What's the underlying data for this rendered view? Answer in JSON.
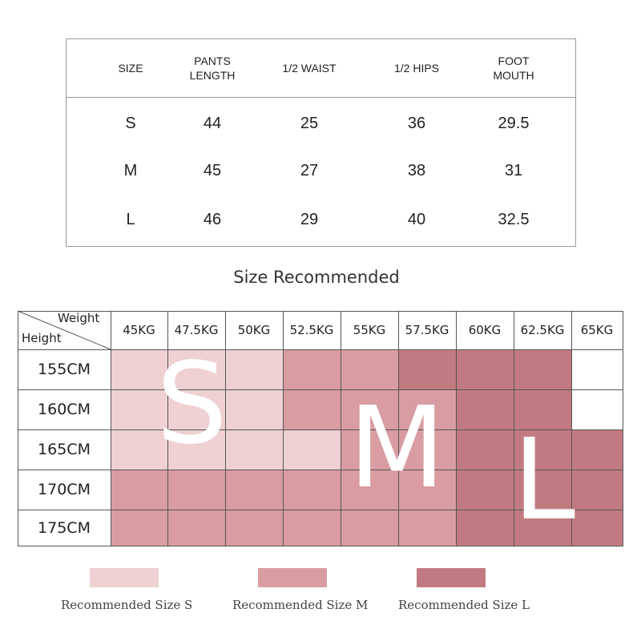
{
  "size_table": {
    "headers": [
      "SIZE",
      "PANTS\nLENGTH",
      "1/2 WAIST",
      "1/2 HIPS",
      "FOOT\nMOUTH"
    ],
    "rows": [
      [
        "S",
        "44",
        "25",
        "36",
        "29.5"
      ],
      [
        "M",
        "45",
        "27",
        "38",
        "31"
      ],
      [
        "L",
        "46",
        "29",
        "40",
        "32.5"
      ]
    ]
  },
  "recommend": {
    "title": "Size Recommended",
    "corner_weight": "Weight",
    "corner_height": "Height",
    "weights": [
      "45KG",
      "47.5KG",
      "50KG",
      "52.5KG",
      "55KG",
      "57.5KG",
      "60KG",
      "62.5KG",
      "65KG"
    ],
    "heights": [
      "155CM",
      "160CM",
      "165CM",
      "170CM",
      "175CM"
    ],
    "grid": [
      [
        "S",
        "S",
        "S",
        "M",
        "M",
        "L",
        "L",
        "L",
        ""
      ],
      [
        "S",
        "S",
        "S",
        "M",
        "M",
        "M",
        "L",
        "L",
        ""
      ],
      [
        "S",
        "S",
        "S",
        "S",
        "M",
        "M",
        "L",
        "L",
        "L"
      ],
      [
        "M",
        "M",
        "M",
        "M",
        "M",
        "M",
        "L",
        "L",
        "L"
      ],
      [
        "M",
        "M",
        "M",
        "M",
        "M",
        "M",
        "L",
        "L",
        "L"
      ]
    ],
    "big_letters": {
      "s": "S",
      "m": "M",
      "l": "L"
    },
    "colors": {
      "S": "#efd0d3",
      "M": "#d99da1",
      "L": "#c17b80",
      "empty": "#ffffff"
    }
  },
  "legend": [
    {
      "label": "Recommended Size S",
      "size": "S"
    },
    {
      "label": "Recommended Size M",
      "size": "M"
    },
    {
      "label": "Recommended Size L",
      "size": "L"
    }
  ]
}
